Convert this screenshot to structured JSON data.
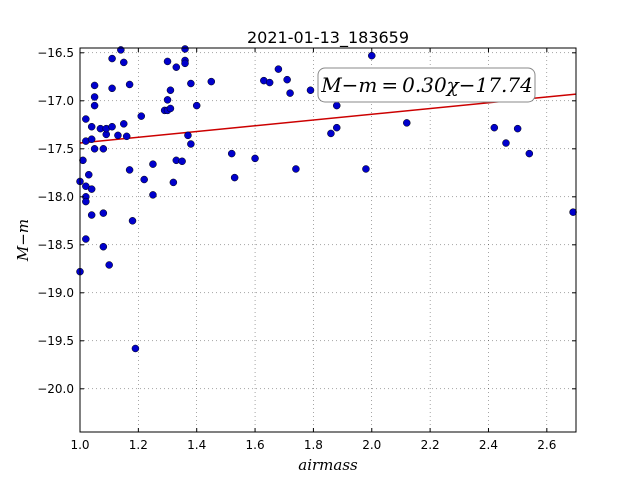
{
  "chart_data": {
    "type": "scatter",
    "title": "2021-01-13_183659",
    "xlabel": "airmass",
    "ylabel": "M−m",
    "xlim": [
      1.0,
      2.7
    ],
    "ylim": [
      -20.45,
      -16.45
    ],
    "y_inverted": true,
    "xticks": [
      "1.0",
      "1.2",
      "1.4",
      "1.6",
      "1.8",
      "2.0",
      "2.2",
      "2.4",
      "2.6"
    ],
    "xtick_values": [
      1.0,
      1.2,
      1.4,
      1.6,
      1.8,
      2.0,
      2.2,
      2.4,
      2.6
    ],
    "yticks": [
      "−16.5",
      "−17.0",
      "−17.5",
      "−18.0",
      "−18.5",
      "−19.0",
      "−19.5",
      "−20.0"
    ],
    "ytick_values": [
      -16.5,
      -17.0,
      -17.5,
      -18.0,
      -18.5,
      -19.0,
      -19.5,
      -20.0
    ],
    "grid": true,
    "point_color": "#0000cc",
    "fit_line": {
      "slope": 0.3,
      "intercept": -17.74,
      "color": "#cc0000"
    },
    "annotation": "M−m = 0.30χ−17.74",
    "points": [
      {
        "x": 1.0,
        "y": -17.84
      },
      {
        "x": 1.0,
        "y": -18.78
      },
      {
        "x": 1.01,
        "y": -17.62
      },
      {
        "x": 1.02,
        "y": -17.19
      },
      {
        "x": 1.02,
        "y": -17.42
      },
      {
        "x": 1.02,
        "y": -18.44
      },
      {
        "x": 1.02,
        "y": -18.0
      },
      {
        "x": 1.02,
        "y": -18.05
      },
      {
        "x": 1.02,
        "y": -17.89
      },
      {
        "x": 1.03,
        "y": -17.77
      },
      {
        "x": 1.04,
        "y": -17.92
      },
      {
        "x": 1.04,
        "y": -18.19
      },
      {
        "x": 1.04,
        "y": -17.4
      },
      {
        "x": 1.04,
        "y": -17.27
      },
      {
        "x": 1.05,
        "y": -16.84
      },
      {
        "x": 1.05,
        "y": -16.96
      },
      {
        "x": 1.05,
        "y": -17.05
      },
      {
        "x": 1.05,
        "y": -17.5
      },
      {
        "x": 1.07,
        "y": -17.29
      },
      {
        "x": 1.08,
        "y": -17.5
      },
      {
        "x": 1.08,
        "y": -18.52
      },
      {
        "x": 1.08,
        "y": -18.17
      },
      {
        "x": 1.09,
        "y": -17.35
      },
      {
        "x": 1.09,
        "y": -17.29
      },
      {
        "x": 1.1,
        "y": -18.71
      },
      {
        "x": 1.11,
        "y": -17.27
      },
      {
        "x": 1.11,
        "y": -16.56
      },
      {
        "x": 1.11,
        "y": -16.87
      },
      {
        "x": 1.13,
        "y": -17.36
      },
      {
        "x": 1.14,
        "y": -16.47
      },
      {
        "x": 1.15,
        "y": -17.24
      },
      {
        "x": 1.15,
        "y": -16.6
      },
      {
        "x": 1.16,
        "y": -17.37
      },
      {
        "x": 1.17,
        "y": -16.83
      },
      {
        "x": 1.17,
        "y": -17.72
      },
      {
        "x": 1.18,
        "y": -18.25
      },
      {
        "x": 1.19,
        "y": -19.58
      },
      {
        "x": 1.21,
        "y": -17.16
      },
      {
        "x": 1.22,
        "y": -17.82
      },
      {
        "x": 1.25,
        "y": -17.98
      },
      {
        "x": 1.25,
        "y": -17.66
      },
      {
        "x": 1.29,
        "y": -17.1
      },
      {
        "x": 1.3,
        "y": -16.99
      },
      {
        "x": 1.3,
        "y": -16.59
      },
      {
        "x": 1.3,
        "y": -17.1
      },
      {
        "x": 1.31,
        "y": -16.89
      },
      {
        "x": 1.31,
        "y": -17.08
      },
      {
        "x": 1.32,
        "y": -17.85
      },
      {
        "x": 1.33,
        "y": -17.62
      },
      {
        "x": 1.33,
        "y": -16.65
      },
      {
        "x": 1.35,
        "y": -17.63
      },
      {
        "x": 1.36,
        "y": -16.46
      },
      {
        "x": 1.36,
        "y": -16.58
      },
      {
        "x": 1.36,
        "y": -16.61
      },
      {
        "x": 1.37,
        "y": -17.36
      },
      {
        "x": 1.38,
        "y": -16.82
      },
      {
        "x": 1.38,
        "y": -17.45
      },
      {
        "x": 1.4,
        "y": -17.05
      },
      {
        "x": 1.45,
        "y": -16.8
      },
      {
        "x": 1.52,
        "y": -17.55
      },
      {
        "x": 1.53,
        "y": -17.8
      },
      {
        "x": 1.6,
        "y": -17.6
      },
      {
        "x": 1.63,
        "y": -16.79
      },
      {
        "x": 1.65,
        "y": -16.81
      },
      {
        "x": 1.68,
        "y": -16.67
      },
      {
        "x": 1.71,
        "y": -16.78
      },
      {
        "x": 1.72,
        "y": -16.92
      },
      {
        "x": 1.74,
        "y": -17.71
      },
      {
        "x": 1.79,
        "y": -16.89
      },
      {
        "x": 1.86,
        "y": -17.34
      },
      {
        "x": 1.88,
        "y": -17.05
      },
      {
        "x": 1.88,
        "y": -17.28
      },
      {
        "x": 1.98,
        "y": -17.71
      },
      {
        "x": 2.0,
        "y": -16.53
      },
      {
        "x": 2.12,
        "y": -17.23
      },
      {
        "x": 2.42,
        "y": -17.28
      },
      {
        "x": 2.46,
        "y": -17.44
      },
      {
        "x": 2.5,
        "y": -17.29
      },
      {
        "x": 2.54,
        "y": -17.55
      },
      {
        "x": 2.69,
        "y": -18.16
      }
    ]
  }
}
